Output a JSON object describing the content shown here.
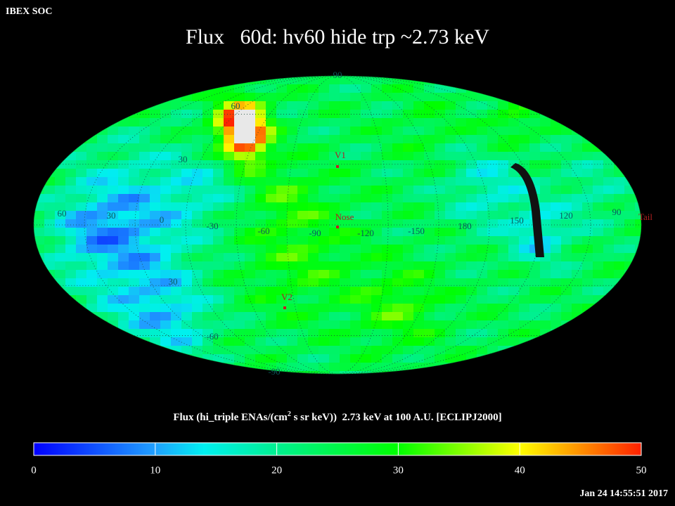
{
  "header": "IBEX SOC",
  "title": "Flux   60d: hv60 hide trp ~2.73 keV",
  "grid_labels": [
    "90",
    "60",
    "30",
    "60",
    "30",
    "0",
    "-30",
    "-60",
    "-90",
    "-120",
    "-150",
    "180",
    "150",
    "120",
    "90",
    "30",
    "-60",
    "-90"
  ],
  "markers": [
    "V1",
    "Nose",
    "V2",
    "Tail"
  ],
  "colorbar": {
    "label_parts": [
      "Flux (hi_triple ENAs/(cm",
      "2",
      " s sr keV))  2.73 keV at 100 A.U. [ECLIPJ2000]"
    ],
    "ticks": [
      0,
      10,
      20,
      30,
      40,
      50
    ]
  },
  "timestamp": "Jan 24 14:55:51 2017"
}
